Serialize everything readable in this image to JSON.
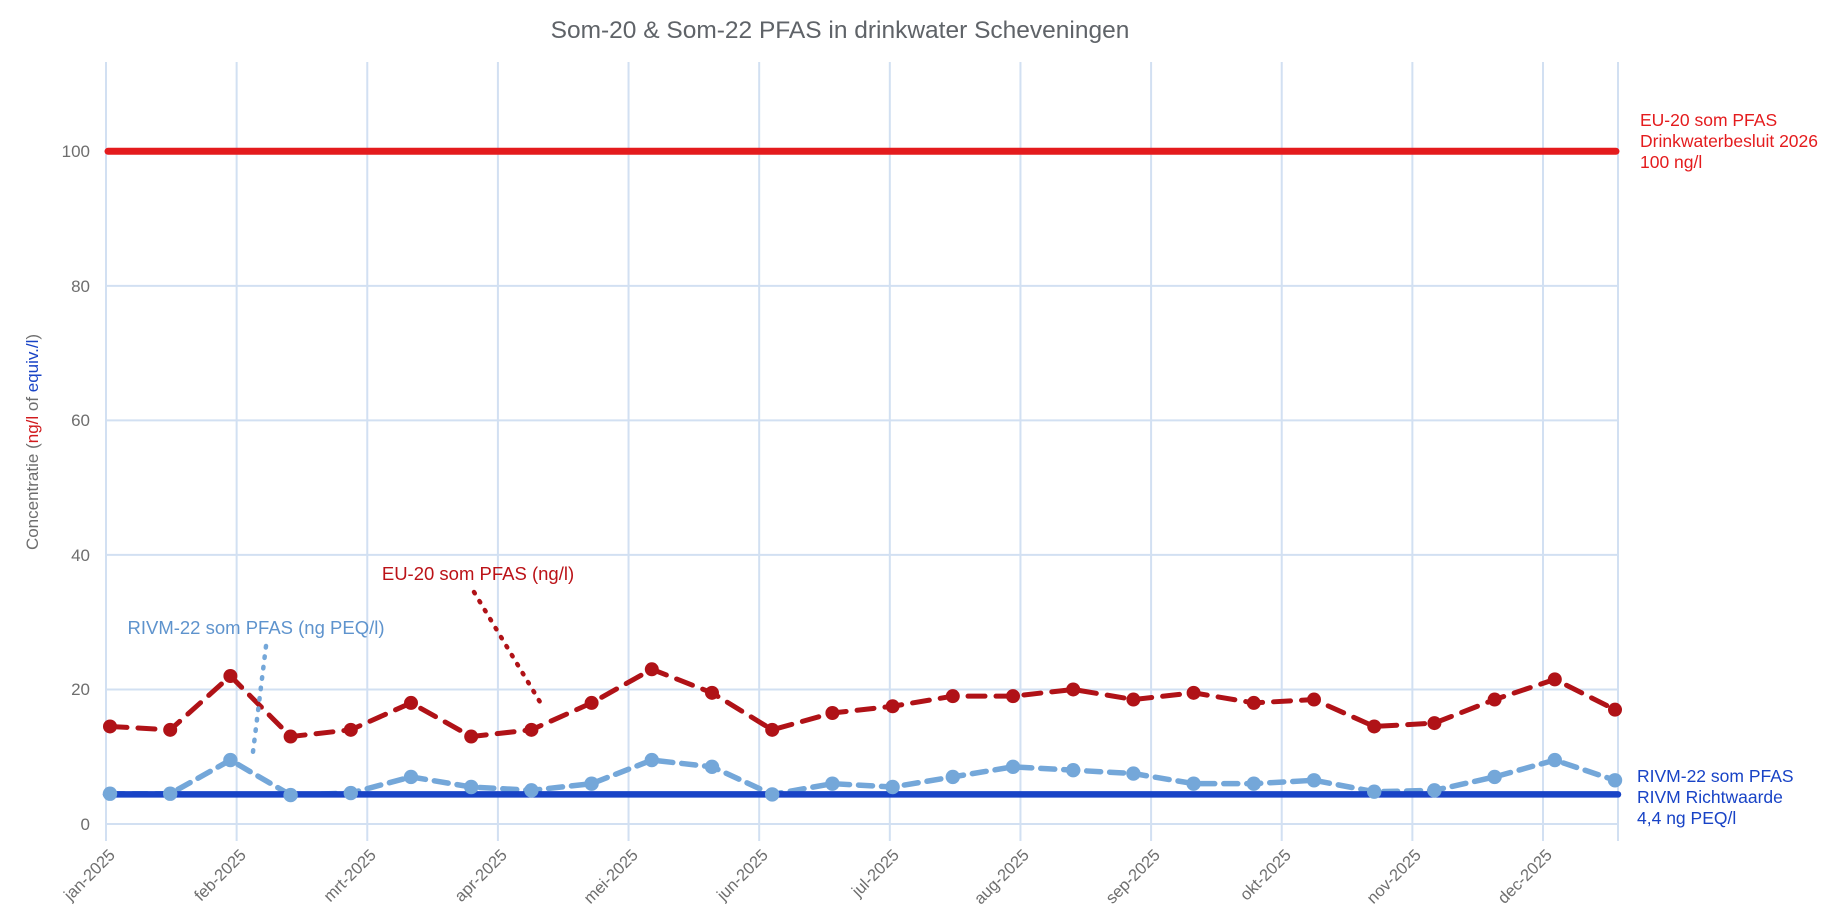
{
  "title": "Som-20 & Som-22 PFAS in drinkwater Scheveningen",
  "y_axis": {
    "parts": [
      {
        "text": "Concentratie (",
        "color": "#6e6e6e"
      },
      {
        "text": "ng/l",
        "color": "#d11a1d"
      },
      {
        "text": " of ",
        "color": "#6e6e6e"
      },
      {
        "text": "equiv./l",
        "color": "#1843c6"
      },
      {
        "text": ")",
        "color": "#6e6e6e"
      }
    ],
    "ticks": [
      "0",
      "20",
      "40",
      "60",
      "80",
      "100"
    ]
  },
  "x_axis": {
    "ticks": [
      "jan-2025",
      "feb-2025",
      "mrt-2025",
      "apr-2025",
      "mei-2025",
      "jun-2025",
      "jul-2025",
      "aug-2025",
      "sep-2025",
      "okt-2025",
      "nov-2025",
      "dec-2025"
    ]
  },
  "series_labels": {
    "eu": "EU-20 som PFAS (ng/l)",
    "rivm": "RIVM-22 som PFAS (ng PEQ/l)"
  },
  "annotations": {
    "eu_limit": {
      "lines": [
        "EU-20 som PFAS",
        "Drinkwaterbesluit 2026",
        "100 ng/l"
      ],
      "color": "#e41b1d"
    },
    "rivm_guideline": {
      "lines": [
        "RIVM-22 som PFAS",
        "RIVM Richtwaarde",
        "4,4 ng PEQ/l"
      ],
      "color": "#1843c6"
    }
  },
  "colors": {
    "eu_series": "#b01217",
    "rivm_series": "#74a7d9",
    "eu_limit_line": "#e41b1d",
    "rivm_limit_line": "#1843c6",
    "gridline": "#d2e0f2",
    "title_text": "#5f6368",
    "tick_text": "#6e6e6e"
  },
  "chart_data": {
    "type": "line",
    "title": "Som-20 & Som-22 PFAS in drinkwater Scheveningen",
    "xlabel": "",
    "ylabel": "Concentratie (ng/l of equiv./l)",
    "ylim": [
      0,
      113
    ],
    "yticks": [
      0,
      20,
      40,
      60,
      80,
      100
    ],
    "categories": [
      "jan-2025",
      "feb-2025",
      "mrt-2025",
      "apr-2025",
      "mei-2025",
      "jun-2025",
      "jul-2025",
      "aug-2025",
      "sep-2025",
      "okt-2025",
      "nov-2025",
      "dec-2025"
    ],
    "points_per_year": 26,
    "grid": true,
    "legend_position": "inline-annotations",
    "series": [
      {
        "name": "EU-20 som PFAS (ng/l)",
        "color": "#b01217",
        "style": "dashed-with-dots",
        "values": [
          14.5,
          14,
          22,
          13,
          14,
          18,
          13,
          14,
          18,
          23,
          19.5,
          14,
          16.5,
          17.5,
          19,
          19,
          20,
          18.5,
          19.5,
          18,
          18.5,
          14.5,
          15,
          18.5,
          21.5,
          17
        ]
      },
      {
        "name": "RIVM-22 som PFAS (ng PEQ/l)",
        "color": "#74a7d9",
        "style": "dashed-with-dots",
        "values": [
          4.5,
          4.5,
          9.5,
          4.3,
          4.6,
          7,
          5.5,
          5,
          6,
          9.5,
          8.5,
          4.4,
          6,
          5.5,
          7,
          8.5,
          8,
          7.5,
          6,
          6,
          6.5,
          4.8,
          5,
          7,
          9.5,
          6.5
        ]
      }
    ],
    "reference_lines": [
      {
        "name": "EU-20 som PFAS Drinkwaterbesluit 2026",
        "value": 100,
        "unit": "ng/l",
        "color": "#e41b1d",
        "style": "solid"
      },
      {
        "name": "RIVM Richtwaarde",
        "value": 4.4,
        "unit": "ng PEQ/l",
        "color": "#1843c6",
        "style": "solid"
      }
    ]
  }
}
